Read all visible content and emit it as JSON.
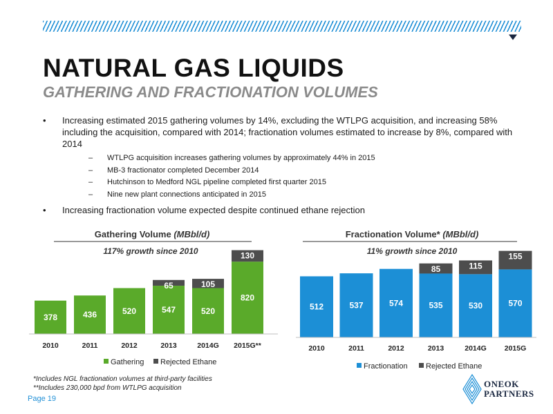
{
  "header": {
    "title": "NATURAL GAS LIQUIDS",
    "subtitle": "GATHERING AND FRACTIONATION VOLUMES"
  },
  "bullets": [
    "Increasing estimated 2015 gathering volumes by 14%, excluding the WTLPG acquisition, and increasing 58% including the acquisition, compared with 2014; fractionation volumes estimated to increase by 8%, compared with 2014",
    "Increasing fractionation volume expected despite continued ethane rejection"
  ],
  "sub_bullets": [
    "WTLPG acquisition increases gathering volumes by approximately 44% in 2015",
    "MB-3 fractionator completed December 2014",
    "Hutchinson to Medford NGL pipeline completed first quarter 2015",
    "Nine new plant connections anticipated in 2015"
  ],
  "chart_data": [
    {
      "type": "bar",
      "stacked": true,
      "title_main": "Gathering Volume ",
      "title_unit": "(MBbl/d)",
      "annotation": "117% growth since 2010",
      "categories": [
        "2010",
        "2011",
        "2012",
        "2013",
        "2014G",
        "2015G**"
      ],
      "series": [
        {
          "name": "Gathering",
          "values": [
            378,
            436,
            520,
            547,
            520,
            820
          ],
          "color": "#5aaa2a"
        },
        {
          "name": "Rejected Ethane",
          "values": [
            0,
            0,
            0,
            65,
            105,
            130
          ],
          "color": "#4d4d4d"
        }
      ],
      "ylim": [
        0,
        970
      ]
    },
    {
      "type": "bar",
      "stacked": true,
      "title_main": "Fractionation Volume* ",
      "title_unit": "(MBbl/d)",
      "annotation": "11% growth since 2010",
      "categories": [
        "2010",
        "2011",
        "2012",
        "2013",
        "2014G",
        "2015G"
      ],
      "series": [
        {
          "name": "Fractionation",
          "values": [
            512,
            537,
            574,
            535,
            530,
            570
          ],
          "color": "#1c8fd6"
        },
        {
          "name": "Rejected Ethane",
          "values": [
            0,
            0,
            0,
            85,
            115,
            155
          ],
          "color": "#4d4d4d"
        }
      ],
      "ylim": [
        0,
        740
      ]
    }
  ],
  "footnotes": [
    "*Includes NGL fractionation volumes at third-party facilities",
    "**Includes 230,000 bpd from WTLPG acquisition"
  ],
  "page_label": "Page 19",
  "logo": {
    "line1": "ONEOK",
    "line2": "PARTNERS"
  }
}
